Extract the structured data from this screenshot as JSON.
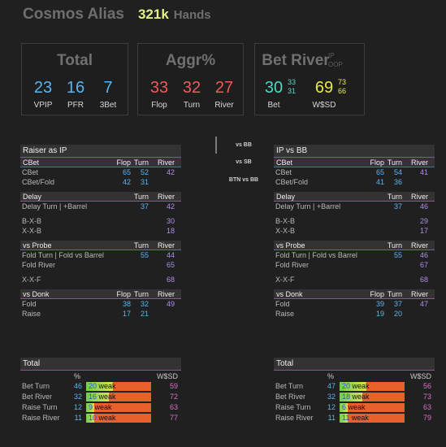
{
  "header": {
    "player": "Cosmos Alias",
    "hands": "321k",
    "hands_label": "Hands"
  },
  "cards": {
    "total": {
      "title": "Total",
      "stats": [
        {
          "value": "23",
          "label": "VPIP"
        },
        {
          "value": "16",
          "label": "PFR"
        },
        {
          "value": "7",
          "label": "3Bet"
        }
      ]
    },
    "aggr": {
      "title": "Aggr%",
      "stats": [
        {
          "value": "33",
          "label": "Flop"
        },
        {
          "value": "32",
          "label": "Turn"
        },
        {
          "value": "27",
          "label": "River"
        }
      ]
    },
    "betriver": {
      "title": "Bet River",
      "ip": "IP",
      "oop": "OOP",
      "bet": {
        "value": "30",
        "ip": "33",
        "oop": "31",
        "label": "Bet"
      },
      "wsd": {
        "value": "69",
        "ip": "73",
        "oop": "66",
        "label": "W$SD"
      }
    }
  },
  "vs_labels": [
    "vs BB",
    "vs SB",
    "BTN vs BB"
  ],
  "left": {
    "title": "Raiser as IP",
    "cbet": {
      "head": "CBet",
      "cols": [
        "Flop",
        "Turn",
        "River"
      ],
      "rows": [
        {
          "label": "CBet",
          "v": [
            "65",
            "52",
            "42"
          ]
        },
        {
          "label": "CBet/Fold",
          "v": [
            "42",
            "31",
            ""
          ]
        }
      ]
    },
    "delay": {
      "head": "Delay",
      "cols": [
        "Turn",
        "River"
      ],
      "rows": [
        {
          "label": "Delay Turn | +Barrel",
          "v": [
            "37",
            "42"
          ]
        },
        {
          "label": "B-X-B",
          "v": [
            "",
            "30"
          ]
        },
        {
          "label": "X-X-B",
          "v": [
            "",
            "18"
          ]
        }
      ]
    },
    "probe": {
      "head": "vs Probe",
      "cols": [
        "Turn",
        "River"
      ],
      "rows": [
        {
          "label": "Fold Turn | Fold vs Barrel",
          "v": [
            "55",
            "44"
          ]
        },
        {
          "label": "Fold River",
          "v": [
            "",
            "65"
          ]
        },
        {
          "label": "X-X-F",
          "v": [
            "",
            "68"
          ]
        }
      ]
    },
    "donk": {
      "head": "vs Donk",
      "cols": [
        "Flop",
        "Turn",
        "River"
      ],
      "rows": [
        {
          "label": "Fold",
          "v": [
            "38",
            "32",
            "49"
          ]
        },
        {
          "label": "Raise",
          "v": [
            "17",
            "21",
            ""
          ]
        }
      ]
    },
    "total": {
      "head": "Total",
      "pct_head": "%",
      "wsd_head": "W$SD",
      "rows": [
        {
          "label": "Bet Turn",
          "pct": "46",
          "n": "20",
          "tag": "weak",
          "wsd": "59"
        },
        {
          "label": "Bet River",
          "pct": "32",
          "n": "16",
          "tag": "weak",
          "wsd": "72"
        },
        {
          "label": "Raise Turn",
          "pct": "12",
          "n": "9",
          "tag": "weak",
          "wsd": "63"
        },
        {
          "label": "Raise River",
          "pct": "11",
          "n": "10",
          "tag": "weak",
          "wsd": "77"
        }
      ]
    }
  },
  "right": {
    "title": "IP vs BB",
    "cbet": {
      "head": "CBet",
      "cols": [
        "Flop",
        "Turn",
        "River"
      ],
      "rows": [
        {
          "label": "CBet",
          "v": [
            "65",
            "54",
            "41"
          ]
        },
        {
          "label": "CBet/Fold",
          "v": [
            "41",
            "36",
            ""
          ]
        }
      ]
    },
    "delay": {
      "head": "Delay",
      "cols": [
        "Turn",
        "River"
      ],
      "rows": [
        {
          "label": "Delay Turn | +Barrel",
          "v": [
            "37",
            "46"
          ]
        },
        {
          "label": "B-X-B",
          "v": [
            "",
            "29"
          ]
        },
        {
          "label": "X-X-B",
          "v": [
            "",
            "17"
          ]
        }
      ]
    },
    "probe": {
      "head": "vs Probe",
      "cols": [
        "Turn",
        "River"
      ],
      "rows": [
        {
          "label": "Fold Turn | Fold vs Barrel",
          "v": [
            "55",
            "46"
          ]
        },
        {
          "label": "Fold River",
          "v": [
            "",
            "67"
          ]
        },
        {
          "label": "X-X-F",
          "v": [
            "",
            "68"
          ]
        }
      ]
    },
    "donk": {
      "head": "vs Donk",
      "cols": [
        "Flop",
        "Turn",
        "River"
      ],
      "rows": [
        {
          "label": "Fold",
          "v": [
            "39",
            "37",
            "47"
          ]
        },
        {
          "label": "Raise",
          "v": [
            "19",
            "20",
            ""
          ]
        }
      ]
    },
    "total": {
      "head": "Total",
      "pct_head": "%",
      "wsd_head": "W$SD",
      "rows": [
        {
          "label": "Bet Turn",
          "pct": "47",
          "n": "20",
          "tag": "weak",
          "wsd": "56"
        },
        {
          "label": "Bet River",
          "pct": "32",
          "n": "18",
          "tag": "weak",
          "wsd": "73"
        },
        {
          "label": "Raise Turn",
          "pct": "12",
          "n": "6",
          "tag": "weak",
          "wsd": "63"
        },
        {
          "label": "Raise River",
          "pct": "11",
          "n": "11",
          "tag": "weak",
          "wsd": "79"
        }
      ]
    }
  }
}
